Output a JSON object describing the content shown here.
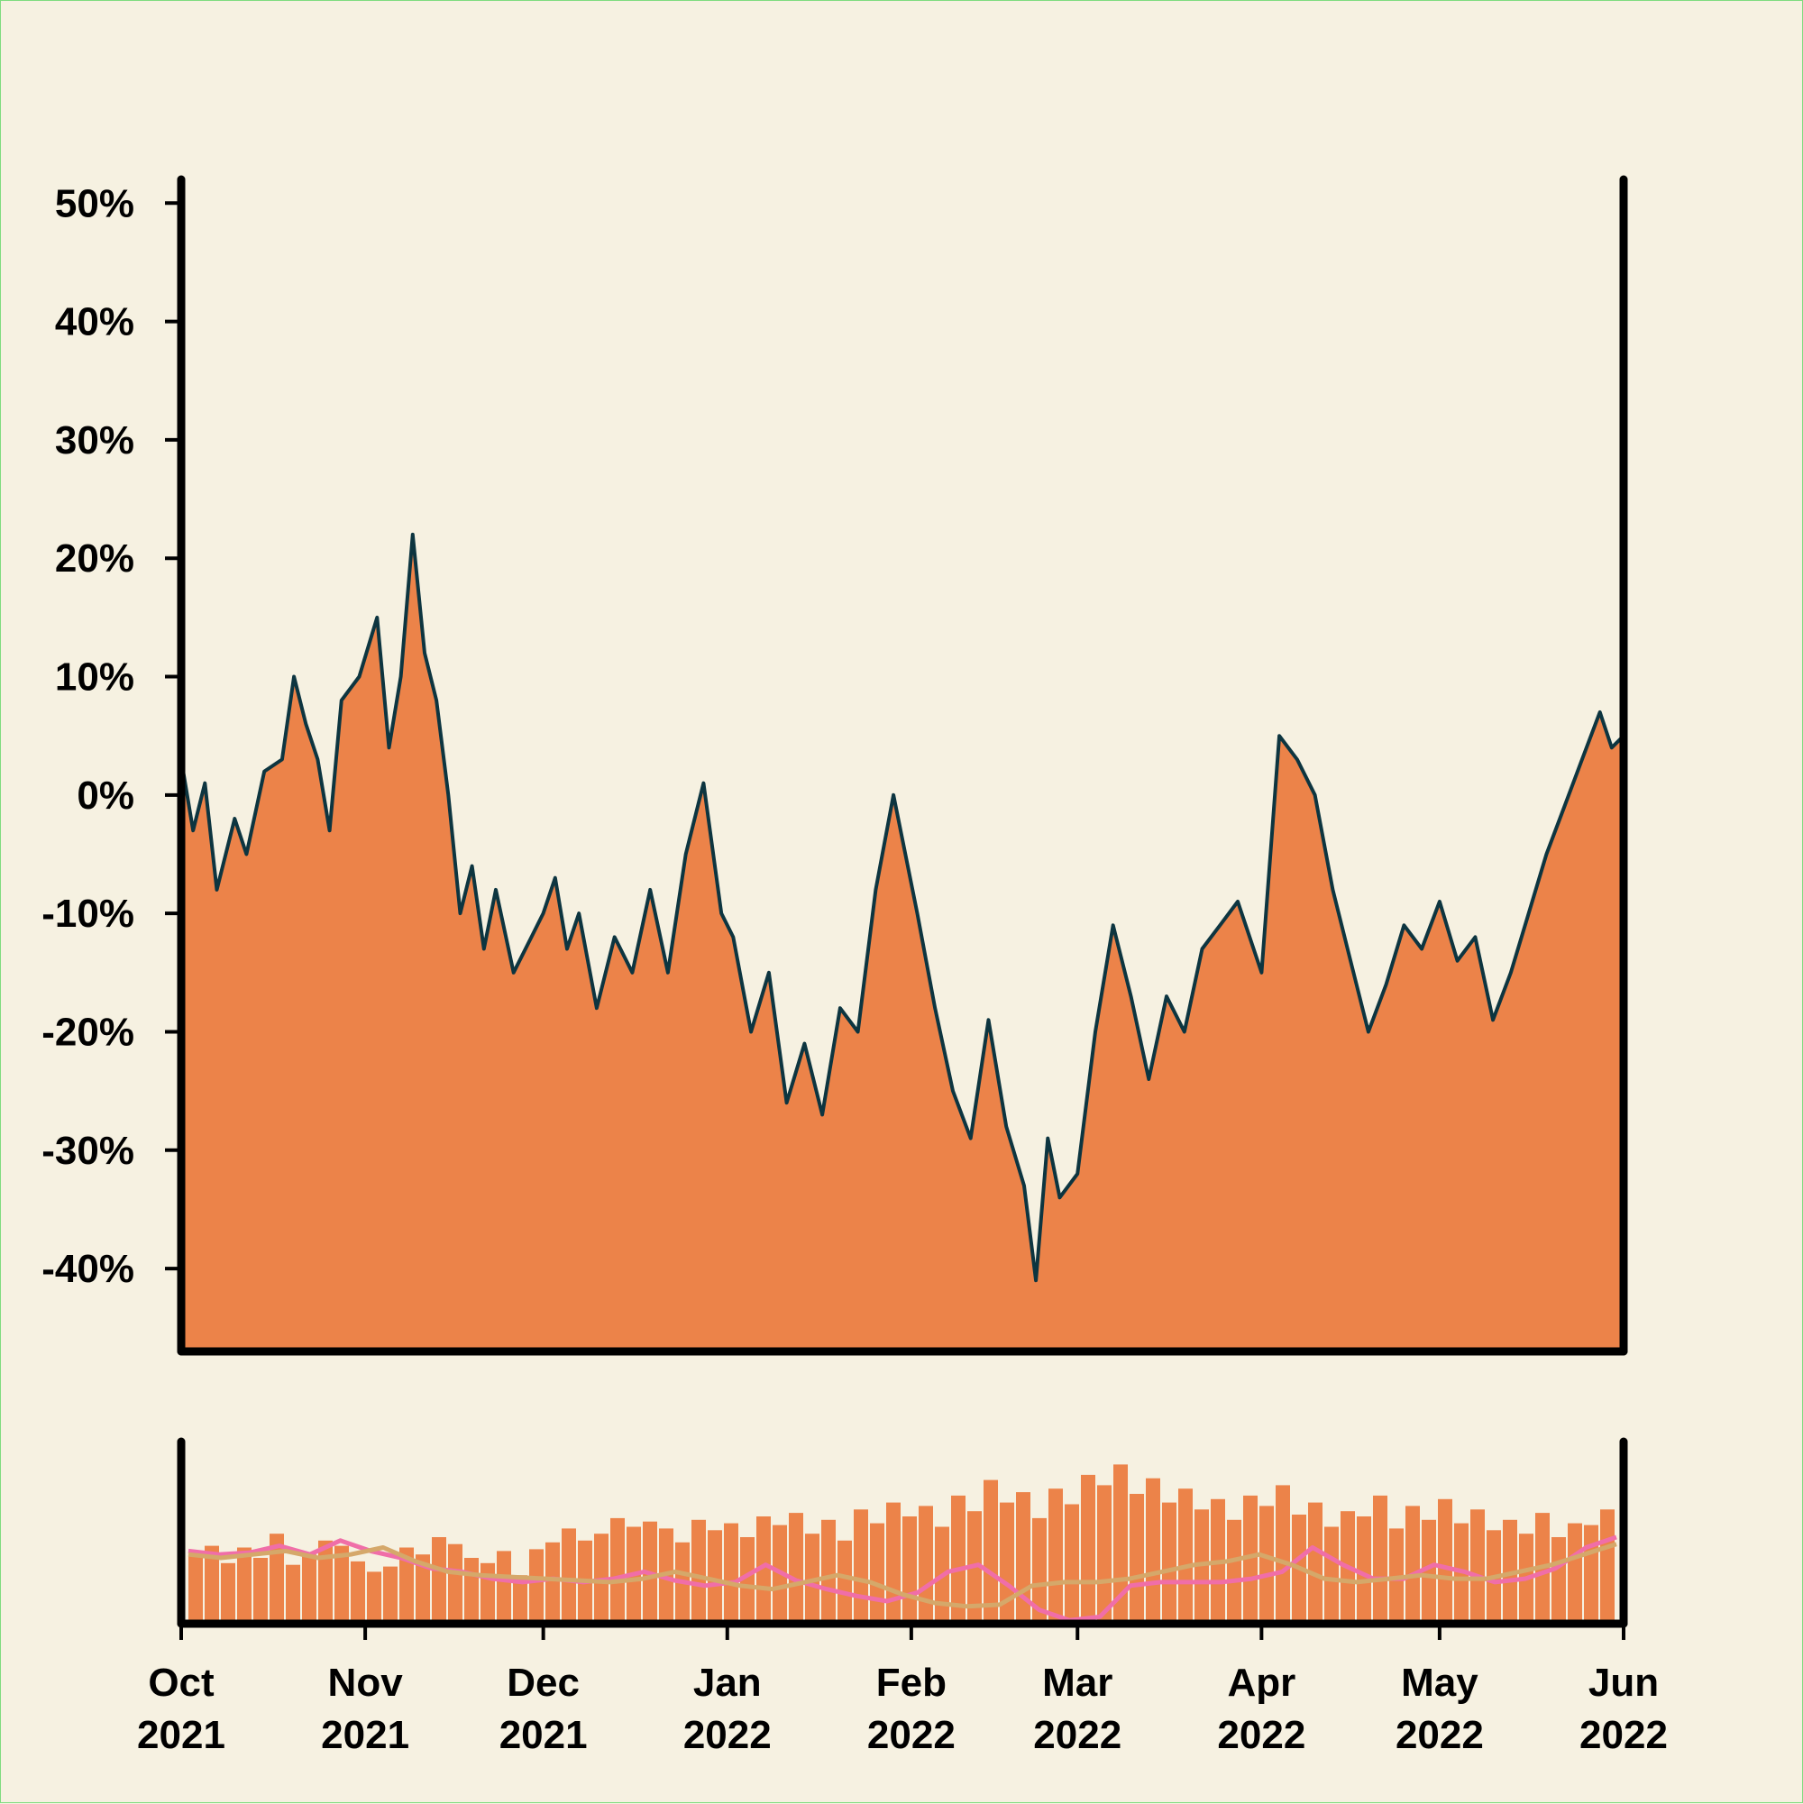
{
  "chart_data": [
    {
      "type": "area",
      "title": "",
      "xlabel": "",
      "ylabel": "",
      "y_unit": "percent",
      "ylim": [
        -47,
        52
      ],
      "xlim": [
        "2021-10-01",
        "2022-06-01"
      ],
      "y_ticks": [
        50,
        40,
        30,
        20,
        10,
        0,
        -10,
        -20,
        -30,
        -40
      ],
      "y_tick_labels": [
        "50%",
        "40%",
        "30%",
        "20%",
        "10%",
        "0%",
        "-10%",
        "-20%",
        "-30%",
        "-40%"
      ],
      "grid": false,
      "colors": {
        "fill": "#ec8349",
        "line": "#0d3540"
      },
      "series": [
        {
          "x": [
            "2021-10-01",
            "2021-10-03",
            "2021-10-05",
            "2021-10-07",
            "2021-10-10",
            "2021-10-12",
            "2021-10-15",
            "2021-10-18",
            "2021-10-20",
            "2021-10-22",
            "2021-10-24",
            "2021-10-26",
            "2021-10-28",
            "2021-10-31",
            "2021-11-03",
            "2021-11-05",
            "2021-11-07",
            "2021-11-09",
            "2021-11-11",
            "2021-11-13",
            "2021-11-15",
            "2021-11-17",
            "2021-11-19",
            "2021-11-21",
            "2021-11-23",
            "2021-11-26",
            "2021-11-29",
            "2021-12-01",
            "2021-12-03",
            "2021-12-05",
            "2021-12-07",
            "2021-12-10",
            "2021-12-13",
            "2021-12-16",
            "2021-12-19",
            "2021-12-22",
            "2021-12-25",
            "2021-12-28",
            "2021-12-31",
            "2022-01-02",
            "2022-01-05",
            "2022-01-08",
            "2022-01-11",
            "2022-01-14",
            "2022-01-17",
            "2022-01-20",
            "2022-01-23",
            "2022-01-26",
            "2022-01-29",
            "2022-02-02",
            "2022-02-05",
            "2022-02-08",
            "2022-02-11",
            "2022-02-14",
            "2022-02-17",
            "2022-02-20",
            "2022-02-22",
            "2022-02-24",
            "2022-02-26",
            "2022-03-01",
            "2022-03-04",
            "2022-03-07",
            "2022-03-10",
            "2022-03-13",
            "2022-03-16",
            "2022-03-19",
            "2022-03-22",
            "2022-03-25",
            "2022-03-28",
            "2022-04-01",
            "2022-04-04",
            "2022-04-07",
            "2022-04-10",
            "2022-04-13",
            "2022-04-16",
            "2022-04-19",
            "2022-04-22",
            "2022-04-25",
            "2022-04-28",
            "2022-05-01",
            "2022-05-04",
            "2022-05-07",
            "2022-05-10",
            "2022-05-13",
            "2022-05-16",
            "2022-05-19",
            "2022-05-22",
            "2022-05-25",
            "2022-05-28",
            "2022-05-30",
            "2022-06-01"
          ],
          "values": [
            3,
            -3,
            1,
            -8,
            -2,
            -5,
            2,
            3,
            10,
            6,
            3,
            -3,
            8,
            10,
            15,
            4,
            10,
            22,
            12,
            8,
            0,
            -10,
            -6,
            -13,
            -8,
            -15,
            -12,
            -10,
            -7,
            -13,
            -10,
            -18,
            -12,
            -15,
            -8,
            -15,
            -5,
            1,
            -10,
            -12,
            -20,
            -15,
            -26,
            -21,
            -27,
            -18,
            -20,
            -8,
            0,
            -10,
            -18,
            -25,
            -29,
            -19,
            -28,
            -33,
            -41,
            -29,
            -34,
            -32,
            -20,
            -11,
            -17,
            -24,
            -17,
            -20,
            -13,
            -11,
            -9,
            -15,
            5,
            3,
            0,
            -8,
            -14,
            -20,
            -16,
            -11,
            -13,
            -9,
            -14,
            -12,
            -19,
            -15,
            -10,
            -5,
            -1,
            3,
            7,
            4,
            5
          ]
        }
      ]
    },
    {
      "type": "bar",
      "title": "",
      "xlabel": "",
      "ylabel": "",
      "y_ticks": [],
      "colors": {
        "bars": "#ec8349",
        "ma_fast": "#f06ea8",
        "ma_slow": "#d5a86a"
      },
      "x_ticks": [
        "2021-10-01",
        "2021-11-01",
        "2021-12-01",
        "2022-01-01",
        "2022-02-01",
        "2022-03-01",
        "2022-04-01",
        "2022-05-01",
        "2022-06-01"
      ],
      "x_tick_labels": [
        [
          "Oct",
          "2021"
        ],
        [
          "Nov",
          "2021"
        ],
        [
          "Dec",
          "2021"
        ],
        [
          "Jan",
          "2022"
        ],
        [
          "Feb",
          "2022"
        ],
        [
          "Mar",
          "2022"
        ],
        [
          "Apr",
          "2022"
        ],
        [
          "May",
          "2022"
        ],
        [
          "Jun",
          "2022"
        ]
      ],
      "bar_values": [
        40,
        45,
        35,
        44,
        38,
        52,
        34,
        40,
        48,
        45,
        36,
        30,
        33,
        44,
        40,
        50,
        46,
        38,
        35,
        42,
        28,
        43,
        47,
        55,
        48,
        52,
        61,
        56,
        59,
        55,
        47,
        60,
        54,
        58,
        50,
        62,
        57,
        64,
        52,
        60,
        48,
        66,
        58,
        70,
        62,
        68,
        56,
        74,
        65,
        83,
        70,
        76,
        61,
        78,
        69,
        86,
        80,
        92,
        75,
        84,
        70,
        78,
        66,
        72,
        60,
        74,
        68,
        80,
        63,
        70,
        56,
        65,
        62,
        74,
        55,
        68,
        60,
        72,
        58,
        66,
        54,
        60,
        52,
        64,
        50,
        58,
        57,
        66
      ],
      "moving_average_fast": [
        42,
        40,
        41,
        45,
        40,
        48,
        42,
        38,
        32,
        30,
        26,
        24,
        26,
        24,
        26,
        30,
        25,
        22,
        24,
        34,
        25,
        20,
        16,
        13,
        18,
        30,
        34,
        22,
        8,
        2,
        4,
        22,
        24,
        24,
        24,
        26,
        30,
        44,
        34,
        26,
        26,
        34,
        30,
        24,
        26,
        32,
        44,
        50
      ],
      "moving_average_slow": [
        40,
        38,
        40,
        42,
        38,
        40,
        44,
        36,
        30,
        28,
        27,
        26,
        25,
        24,
        26,
        30,
        26,
        22,
        20,
        24,
        28,
        24,
        17,
        12,
        10,
        11,
        22,
        24,
        24,
        26,
        30,
        34,
        36,
        40,
        34,
        26,
        24,
        26,
        28,
        26,
        26,
        30,
        34,
        40,
        46
      ]
    }
  ]
}
